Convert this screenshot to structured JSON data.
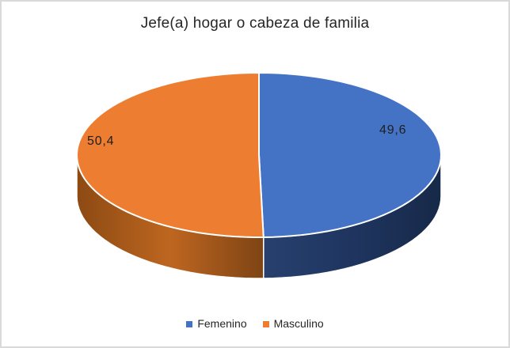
{
  "chart_data": {
    "type": "pie",
    "style": "pie-3d",
    "title": "Jefe(a) hogar o cabeza de familia",
    "categories": [
      "Femenino",
      "Masculino"
    ],
    "values": [
      49.6,
      50.4
    ],
    "labels": [
      "49,6",
      "50,4"
    ],
    "colors": [
      "#4472C4",
      "#ED7D31"
    ],
    "side_gradients": [
      [
        "#27406E",
        "#1F3560",
        "#172948"
      ],
      [
        "#8C4A13",
        "#BE6620",
        "#7E4414"
      ]
    ],
    "start_angle_deg": 0,
    "direction": "clockwise",
    "legend_position": "bottom",
    "data_labels_position": "inside-end",
    "background": "#FFFFFF",
    "border_color": "#D9D9D9"
  },
  "legend": {
    "items": [
      {
        "label": "Femenino",
        "color": "#4472C4"
      },
      {
        "label": "Masculino",
        "color": "#ED7D31"
      }
    ]
  }
}
